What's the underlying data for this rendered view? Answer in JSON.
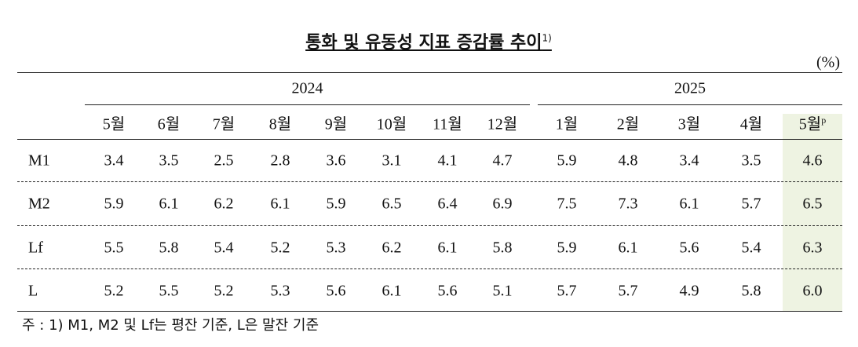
{
  "title": {
    "text": "통화 및 유동성 지표 증감률 추이",
    "note_ref": "1)"
  },
  "unit": "(%)",
  "table": {
    "years": [
      {
        "year": "2024",
        "months": [
          "5월",
          "6월",
          "7월",
          "8월",
          "9월",
          "10월",
          "11월",
          "12월"
        ]
      },
      {
        "year": "2025",
        "months": [
          "1월",
          "2월",
          "3월",
          "4월",
          {
            "label": "5월",
            "mark": "p"
          }
        ]
      }
    ],
    "rows": [
      {
        "label": "M1",
        "values": [
          "3.4",
          "3.5",
          "2.5",
          "2.8",
          "3.6",
          "3.1",
          "4.1",
          "4.7",
          "5.9",
          "4.8",
          "3.4",
          "3.5",
          "4.6"
        ]
      },
      {
        "label": "M2",
        "values": [
          "5.9",
          "6.1",
          "6.2",
          "6.1",
          "5.9",
          "6.5",
          "6.4",
          "6.9",
          "7.5",
          "7.3",
          "6.1",
          "5.7",
          "6.5"
        ]
      },
      {
        "label": "Lf",
        "values": [
          "5.5",
          "5.8",
          "5.4",
          "5.2",
          "5.3",
          "6.2",
          "6.1",
          "5.8",
          "5.9",
          "6.1",
          "5.6",
          "5.4",
          "6.3"
        ]
      },
      {
        "label": "L",
        "values": [
          "5.2",
          "5.5",
          "5.2",
          "5.3",
          "5.6",
          "6.1",
          "5.6",
          "5.1",
          "5.7",
          "5.7",
          "4.9",
          "5.8",
          "6.0"
        ]
      }
    ]
  },
  "note": "주 : 1) M1, M2 및 Lf는 평잔 기준, L은 말잔 기준"
}
